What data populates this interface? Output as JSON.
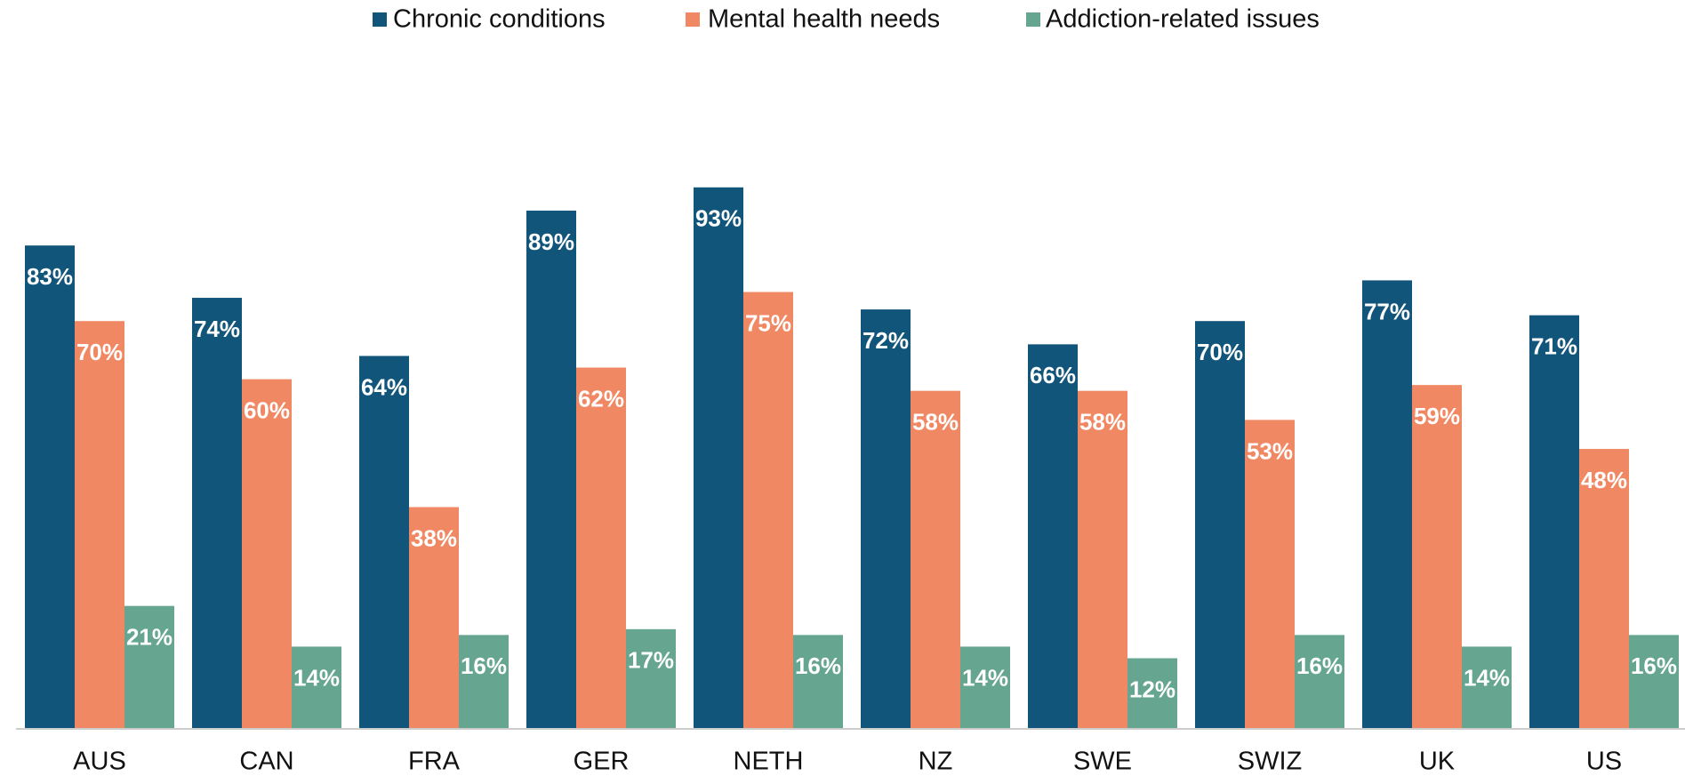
{
  "chart_data": {
    "type": "bar",
    "categories": [
      "AUS",
      "CAN",
      "FRA",
      "GER",
      "NETH",
      "NZ",
      "SWE",
      "SWIZ",
      "UK",
      "US"
    ],
    "series": [
      {
        "name": "Chronic conditions",
        "color": "#12557a",
        "values": [
          83,
          74,
          64,
          89,
          93,
          72,
          66,
          70,
          77,
          71
        ],
        "value_labels": [
          "83%",
          "74%",
          "64%",
          "89%",
          "93%",
          "72%",
          "66%",
          "70%",
          "77%",
          "71%"
        ]
      },
      {
        "name": "Mental health needs",
        "color": "#f08963",
        "values": [
          70,
          60,
          38,
          62,
          75,
          58,
          58,
          53,
          59,
          48
        ],
        "value_labels": [
          "70%",
          "60%",
          "38%",
          "62%",
          "75%",
          "58%",
          "58%",
          "53%",
          "59%",
          "48%"
        ]
      },
      {
        "name": "Addiction-related issues",
        "color": "#66a690",
        "values": [
          21,
          14,
          16,
          17,
          16,
          14,
          12,
          16,
          14,
          16
        ],
        "value_labels": [
          "21%",
          "14%",
          "16%",
          "17%",
          "16%",
          "14%",
          "12%",
          "16%",
          "14%",
          "16%"
        ]
      }
    ],
    "ylim": [
      0,
      100
    ],
    "legend": "top"
  }
}
